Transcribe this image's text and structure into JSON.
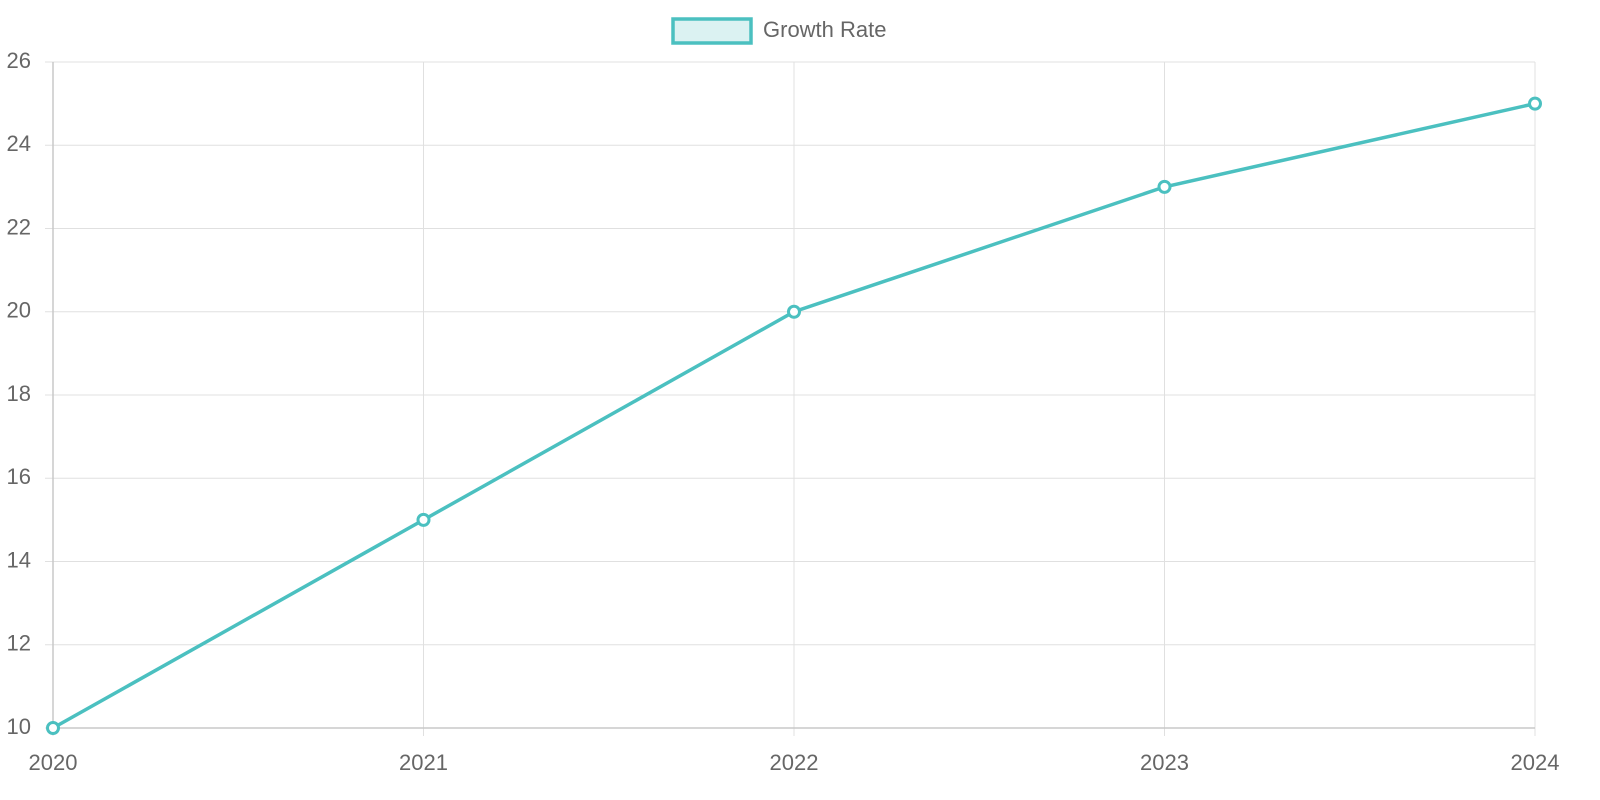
{
  "chart_data": {
    "type": "line",
    "categories": [
      "2020",
      "2021",
      "2022",
      "2023",
      "2024"
    ],
    "series": [
      {
        "name": "Growth Rate",
        "color": "#4bc0c0",
        "values": [
          10,
          15,
          20,
          23,
          25
        ]
      }
    ],
    "ylim": [
      10,
      26
    ],
    "yticks": [
      10,
      12,
      14,
      16,
      18,
      20,
      22,
      24,
      26
    ],
    "grid": true,
    "legend": "top"
  }
}
